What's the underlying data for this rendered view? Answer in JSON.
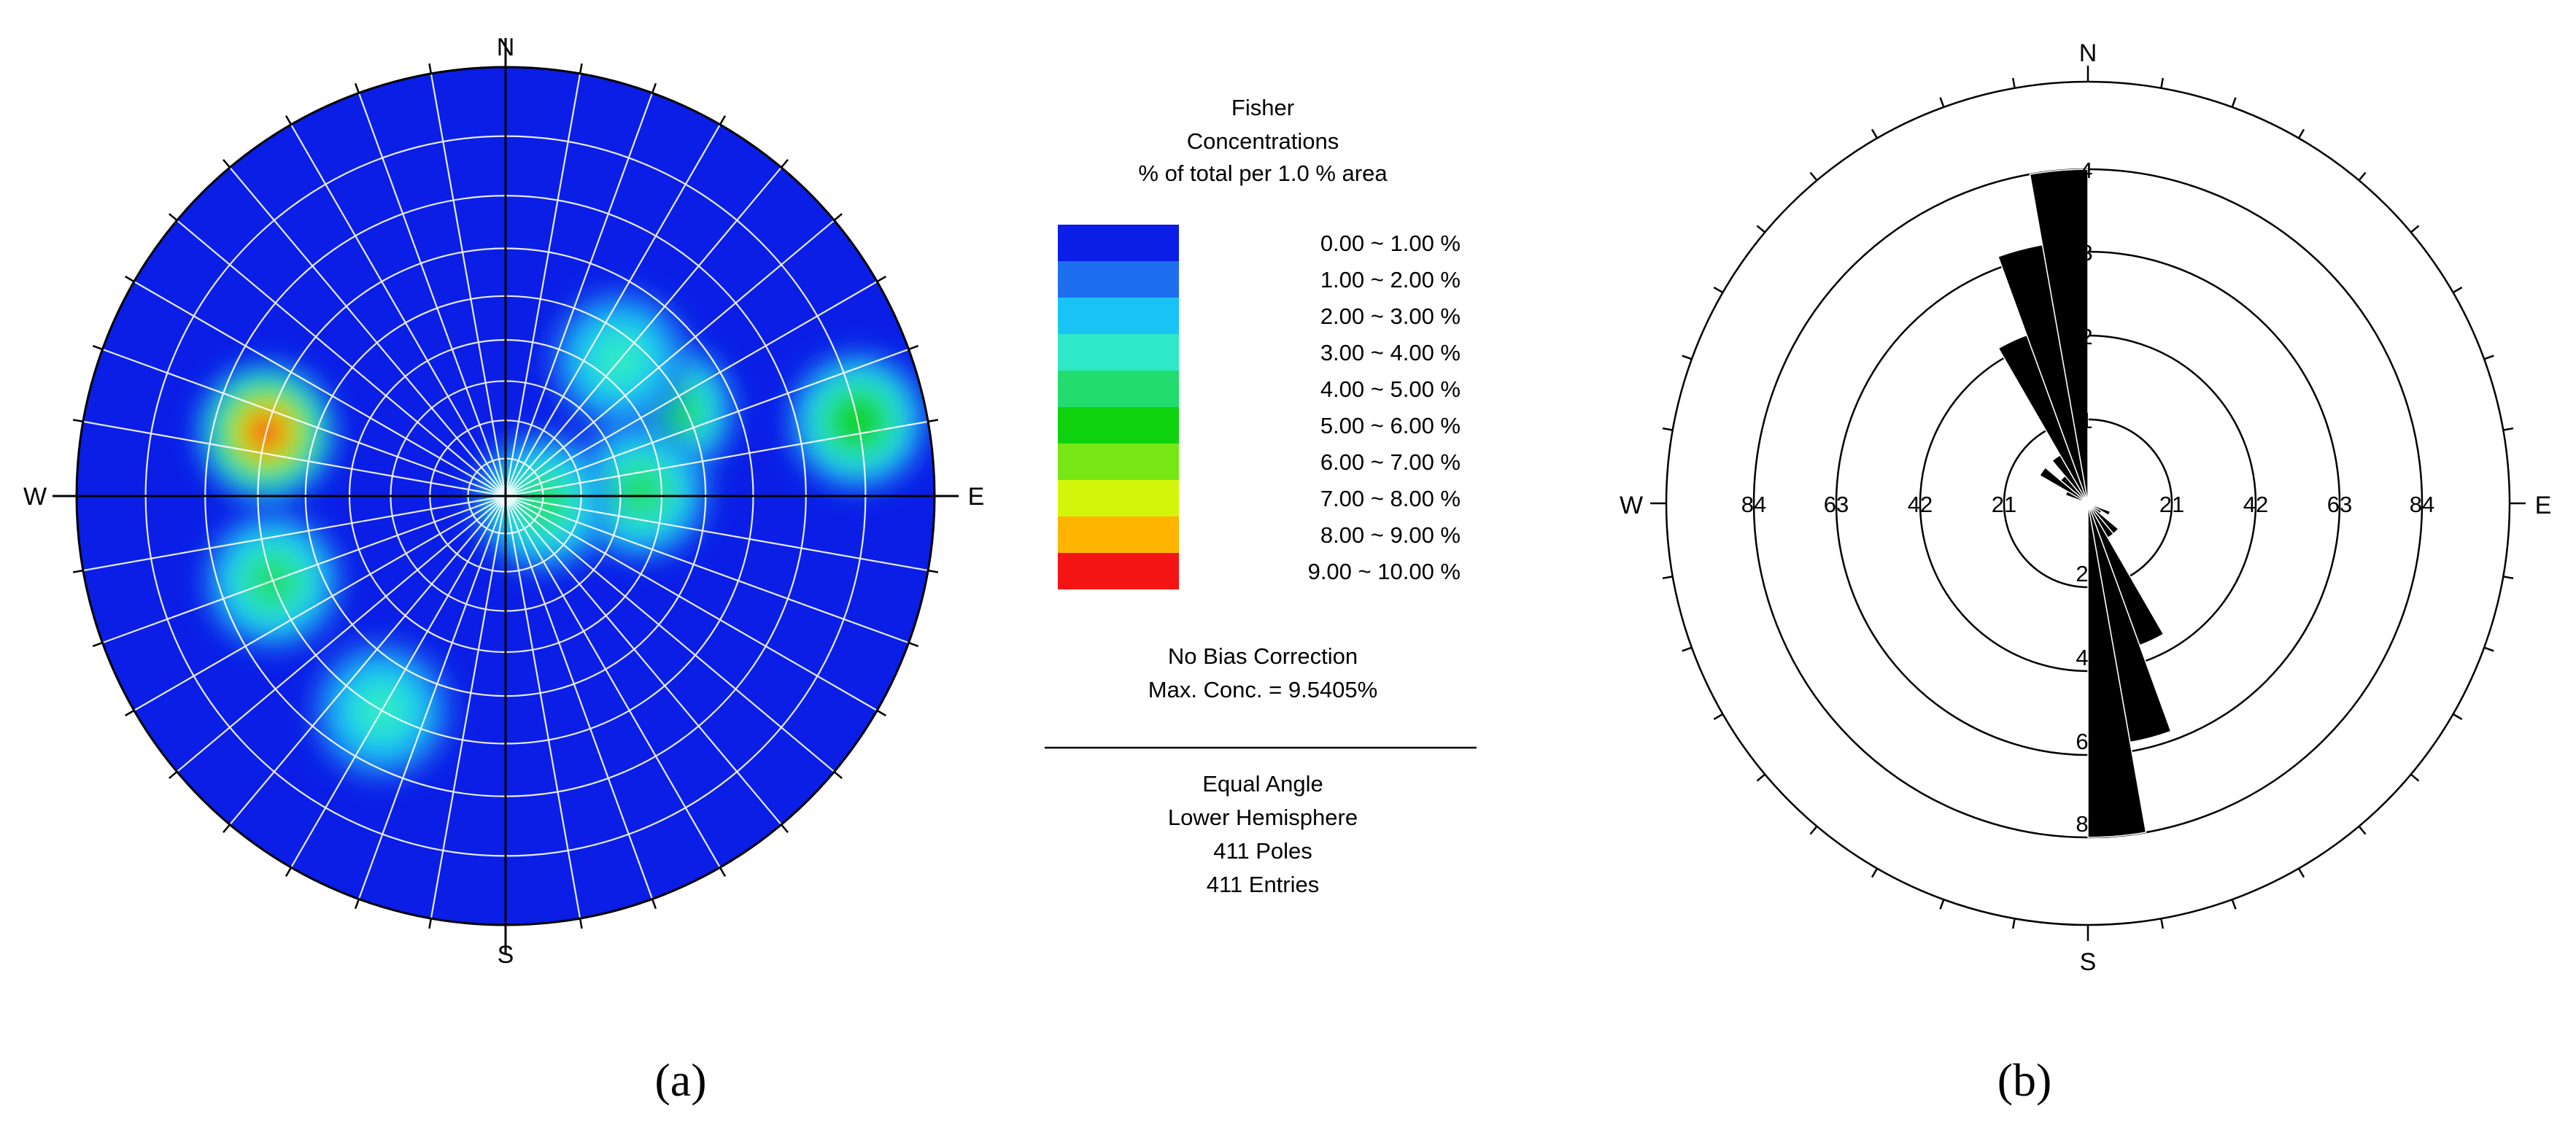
{
  "panel_a": {
    "caption": "(a)",
    "compass": {
      "N": "N",
      "S": "S",
      "E": "E",
      "W": "W"
    },
    "legend": {
      "title_lines": [
        "Fisher",
        "Concentrations",
        "% of total per 1.0 % area"
      ],
      "entries": [
        {
          "label": "0.00 ~  1.00 %",
          "color": "#0a1ee6"
        },
        {
          "label": "1.00 ~  2.00 %",
          "color": "#1e6ef0"
        },
        {
          "label": "2.00 ~  3.00 %",
          "color": "#19c3f5"
        },
        {
          "label": "3.00 ~  4.00 %",
          "color": "#2ee8c8"
        },
        {
          "label": "4.00 ~  5.00 %",
          "color": "#22dc6e"
        },
        {
          "label": "5.00 ~  6.00 %",
          "color": "#0ed20e"
        },
        {
          "label": "6.00 ~  7.00 %",
          "color": "#78e614"
        },
        {
          "label": "7.00 ~  8.00 %",
          "color": "#d2f50a"
        },
        {
          "label": "8.00 ~  9.00 %",
          "color": "#ffb400"
        },
        {
          "label": "9.00 ~ 10.00 %",
          "color": "#f51414"
        }
      ],
      "bias": "No Bias Correction",
      "max_conc": "Max. Conc. = 9.5405%",
      "projection": [
        "Equal Angle",
        "Lower Hemisphere",
        "411 Poles",
        "411 Entries"
      ]
    },
    "background_color": "#0a1ee6",
    "hotspots": [
      {
        "color_level": 9,
        "trend": 285,
        "plunge": 30
      },
      {
        "color_level": 5,
        "trend": 78,
        "plunge": 10
      },
      {
        "color_level": 5,
        "trend": 62,
        "plunge": 44
      },
      {
        "color_level": 4,
        "trend": 88,
        "plunge": 55
      },
      {
        "color_level": 4,
        "trend": 250,
        "plunge": 30
      },
      {
        "color_level": 3,
        "trend": 40,
        "plunge": 45
      },
      {
        "color_level": 4,
        "trend": 100,
        "plunge": 80
      },
      {
        "color_level": 3,
        "trend": 210,
        "plunge": 30
      }
    ]
  },
  "panel_b": {
    "caption": "(b)",
    "compass": {
      "N": "N",
      "S": "S",
      "E": "E",
      "W": "W"
    },
    "ring_values_vertical": [
      "1",
      "2",
      "3",
      "4"
    ],
    "ring_values_vertical_south": [
      "2",
      "4",
      "6",
      "8"
    ],
    "ring_values_horizontal": [
      "21",
      "42",
      "63",
      "84"
    ],
    "chart_data": {
      "type": "rose",
      "direction_bin_deg": 10,
      "bins": [
        {
          "dir_start": 350,
          "value": 84
        },
        {
          "dir_start": 340,
          "value": 66
        },
        {
          "dir_start": 330,
          "value": 45
        },
        {
          "dir_start": 320,
          "value": 14
        },
        {
          "dir_start": 310,
          "value": 9
        },
        {
          "dir_start": 300,
          "value": 14
        },
        {
          "dir_start": 290,
          "value": 6
        },
        {
          "dir_start": 110,
          "value": 6
        },
        {
          "dir_start": 120,
          "value": 4
        },
        {
          "dir_start": 130,
          "value": 10
        },
        {
          "dir_start": 140,
          "value": 10
        },
        {
          "dir_start": 150,
          "value": 38
        },
        {
          "dir_start": 160,
          "value": 61
        },
        {
          "dir_start": 170,
          "value": 84
        }
      ]
    }
  }
}
